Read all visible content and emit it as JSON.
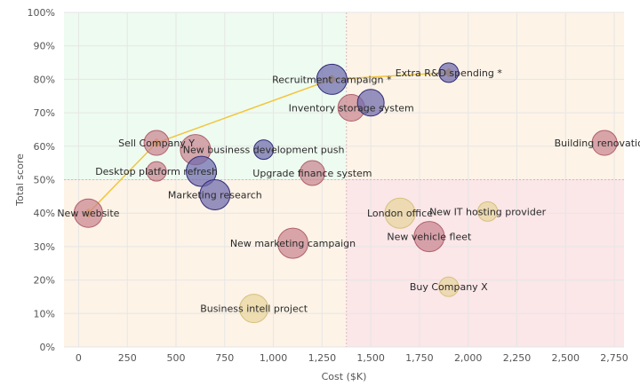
{
  "chart_data": {
    "type": "scatter",
    "xlabel": "Cost ($K)",
    "ylabel": "Total score",
    "xlim": [
      -75,
      2800
    ],
    "ylim": [
      0,
      100
    ],
    "x_ticks": [
      0,
      250,
      500,
      750,
      1000,
      1250,
      1500,
      1750,
      2000,
      2250,
      2500,
      2750
    ],
    "x_tick_labels": [
      "0",
      "250",
      "500",
      "750",
      "1,000",
      "1,250",
      "1,500",
      "1,750",
      "2,000",
      "2,250",
      "2,500",
      "2,750"
    ],
    "y_ticks": [
      0,
      10,
      20,
      30,
      40,
      50,
      60,
      70,
      80,
      90,
      100
    ],
    "y_tick_labels": [
      "0%",
      "10%",
      "20%",
      "30%",
      "40%",
      "50%",
      "60%",
      "70%",
      "80%",
      "90%",
      "100%"
    ],
    "grid": true,
    "quadrants": {
      "x_split": 1375,
      "y_split": 50,
      "colors": {
        "top_left": "#eefbf0",
        "top_right": "#fdf3e7",
        "bottom_left": "#fdf3e7",
        "bottom_right": "#fbe6e8"
      }
    },
    "points": [
      {
        "label": "New website",
        "x": 50,
        "y": 40,
        "size": 16,
        "color": "#c98590"
      },
      {
        "label": "Sell Company Y",
        "x": 400,
        "y": 61,
        "size": 14,
        "color": "#c98590"
      },
      {
        "label": "Desktop platform refresh",
        "x": 400,
        "y": 52.5,
        "size": 11,
        "color": "#c98590"
      },
      {
        "label": "",
        "x": 600,
        "y": 59,
        "size": 17,
        "color": "#c98590"
      },
      {
        "label": "",
        "x": 630,
        "y": 52.5,
        "size": 17,
        "color": "#6e6aac"
      },
      {
        "label": "Marketing research",
        "x": 700,
        "y": 45.5,
        "size": 17,
        "color": "#6e6aac"
      },
      {
        "label": "New business development push",
        "x": 950,
        "y": 59,
        "size": 11,
        "color": "#6e6aac"
      },
      {
        "label": "Upgrade finance system",
        "x": 1200,
        "y": 52,
        "size": 14,
        "color": "#c98590"
      },
      {
        "label": "New marketing campaign",
        "x": 1100,
        "y": 31,
        "size": 17,
        "color": "#c98590"
      },
      {
        "label": "Business intell project",
        "x": 900,
        "y": 11.5,
        "size": 16,
        "color": "#e8d69e"
      },
      {
        "label": "Recruitment campaign *",
        "x": 1300,
        "y": 80,
        "size": 17,
        "color": "#6e6aac"
      },
      {
        "label": "Inventory storage system",
        "x": 1400,
        "y": 71.5,
        "size": 15,
        "color": "#c98590"
      },
      {
        "label": "",
        "x": 1500,
        "y": 73,
        "size": 15,
        "color": "#6e6aac"
      },
      {
        "label": "Extra R&D spending *",
        "x": 1900,
        "y": 82,
        "size": 11,
        "color": "#6e6aac"
      },
      {
        "label": "London office",
        "x": 1650,
        "y": 40,
        "size": 17,
        "color": "#e8d69e"
      },
      {
        "label": "New vehicle fleet",
        "x": 1800,
        "y": 33,
        "size": 17,
        "color": "#c98590"
      },
      {
        "label": "New IT hosting provider",
        "x": 2100,
        "y": 40.5,
        "size": 11,
        "color": "#e8d69e"
      },
      {
        "label": "Buy Company X",
        "x": 1900,
        "y": 18,
        "size": 11,
        "color": "#e8d69e"
      },
      {
        "label": "Building renovations",
        "x": 2700,
        "y": 61,
        "size": 14,
        "color": "#c98590"
      }
    ],
    "frontier": {
      "color": "#f2c53d",
      "x": [
        50,
        400,
        1300,
        1900
      ],
      "y": [
        40,
        61,
        80,
        82
      ]
    }
  }
}
